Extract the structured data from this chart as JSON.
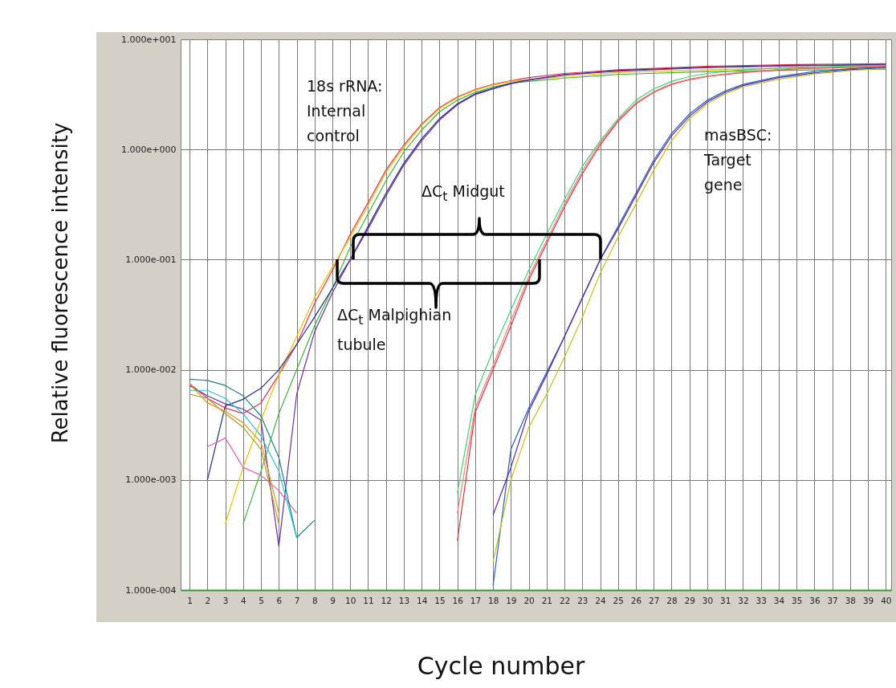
{
  "chart_data": {
    "type": "line",
    "xlabel": "Cycle number",
    "ylabel": "Relative fluorescence intensity",
    "xlim": [
      0.5,
      40.3
    ],
    "xticks": [
      1,
      2,
      3,
      4,
      5,
      6,
      7,
      8,
      9,
      10,
      11,
      12,
      13,
      14,
      15,
      16,
      17,
      18,
      19,
      20,
      21,
      22,
      23,
      24,
      25,
      26,
      27,
      28,
      29,
      30,
      31,
      32,
      33,
      34,
      35,
      36,
      37,
      38,
      39,
      40
    ],
    "ylim": [
      0.0001,
      10
    ],
    "yticks": [
      {
        "value": 0.0001,
        "label": "1.000e-004"
      },
      {
        "value": 0.001,
        "label": "1.000e-003"
      },
      {
        "value": 0.01,
        "label": "1.000e-002"
      },
      {
        "value": 0.1,
        "label": "1.000e-001"
      },
      {
        "value": 1,
        "label": "1.000e+000"
      },
      {
        "value": 10,
        "label": "1.000e+001"
      }
    ],
    "log": "y",
    "grid": true,
    "legend": false,
    "marker": "none",
    "line_style": "solid",
    "annotations": [
      "18s rRNA: Internal control",
      "ΔC$_{t}$ Midgut",
      "ΔC$_{t}$ Malpighian tubule",
      "masBSC: Target gene"
    ],
    "series": [
      {
        "color": "#e03050",
        "x": [
          1,
          2,
          3,
          4,
          5,
          6,
          7,
          8,
          9,
          10,
          11,
          12,
          13,
          14,
          15,
          16,
          17,
          18,
          19,
          20,
          22,
          25,
          30,
          35,
          40
        ],
        "values": [
          0.0075,
          0.0055,
          0.0045,
          0.004,
          0.005,
          0.009,
          0.017,
          0.04,
          0.08,
          0.17,
          0.33,
          0.65,
          1.1,
          1.7,
          2.4,
          3.0,
          3.5,
          3.9,
          4.2,
          4.5,
          4.9,
          5.3,
          5.7,
          5.9,
          6.0
        ]
      },
      {
        "color": "#e8c000",
        "x": [
          3,
          4,
          5,
          6,
          7,
          8,
          9,
          10,
          11,
          12,
          13,
          14,
          15,
          16,
          17,
          18,
          19,
          20,
          22,
          25,
          30,
          35,
          40
        ],
        "values": [
          0.0004,
          0.0013,
          0.0035,
          0.009,
          0.02,
          0.045,
          0.085,
          0.16,
          0.31,
          0.62,
          1.05,
          1.65,
          2.35,
          2.95,
          3.45,
          3.85,
          4.15,
          4.3,
          4.6,
          5.0,
          5.3,
          5.5,
          5.6
        ]
      },
      {
        "color": "#40b040",
        "x": [
          4,
          5,
          6,
          7,
          8,
          9,
          10,
          11,
          12,
          13,
          14,
          15,
          16,
          17,
          18,
          19,
          20,
          22,
          25,
          30,
          35,
          40
        ],
        "values": [
          0.0004,
          0.0012,
          0.004,
          0.01,
          0.025,
          0.055,
          0.13,
          0.26,
          0.52,
          0.95,
          1.5,
          2.2,
          2.8,
          3.3,
          3.7,
          4.0,
          4.15,
          4.45,
          4.8,
          5.1,
          5.25,
          5.35
        ]
      },
      {
        "color": "#203080",
        "x": [
          2,
          3,
          4,
          5,
          6,
          7,
          8,
          9,
          10,
          11,
          12,
          13,
          14,
          15,
          16,
          17,
          18,
          19,
          20,
          22,
          25,
          30,
          35,
          40
        ],
        "values": [
          0.001,
          0.0047,
          0.0054,
          0.0068,
          0.01,
          0.017,
          0.03,
          0.055,
          0.1,
          0.2,
          0.4,
          0.75,
          1.25,
          1.9,
          2.6,
          3.2,
          3.6,
          4.0,
          4.3,
          4.8,
          5.2,
          5.6,
          5.8,
          5.9
        ]
      },
      {
        "color": "#7030a0",
        "x": [
          1,
          2,
          3,
          4,
          5,
          6,
          7,
          8,
          9,
          10,
          11,
          12,
          13,
          14,
          15,
          16,
          17,
          18,
          19,
          20,
          22,
          25,
          30,
          35,
          40
        ],
        "values": [
          0.0072,
          0.0058,
          0.0049,
          0.0044,
          0.0035,
          0.00025,
          0.006,
          0.022,
          0.05,
          0.1,
          0.19,
          0.38,
          0.72,
          1.2,
          1.85,
          2.55,
          3.15,
          3.55,
          3.95,
          4.25,
          4.75,
          5.15,
          5.55,
          5.75,
          5.85
        ]
      },
      {
        "color": "#e060c0",
        "x": [
          2,
          3,
          4,
          5,
          6,
          7
        ],
        "values": [
          0.002,
          0.0024,
          0.0013,
          0.0011,
          0.0008,
          0.0005
        ]
      },
      {
        "color": "#208080",
        "x": [
          1,
          2,
          3,
          4,
          5,
          6,
          7,
          8
        ],
        "values": [
          0.0082,
          0.008,
          0.0072,
          0.0058,
          0.0038,
          0.0016,
          0.0003,
          0.00043
        ]
      },
      {
        "color": "#30c0d0",
        "x": [
          1,
          2,
          3,
          4,
          5,
          6,
          7
        ],
        "values": [
          0.0065,
          0.0065,
          0.0055,
          0.004,
          0.0025,
          0.0012,
          0.0003
        ]
      },
      {
        "color": "#a0a030",
        "x": [
          1,
          2,
          3,
          4,
          5,
          6
        ],
        "values": [
          0.006,
          0.0055,
          0.004,
          0.003,
          0.0019,
          0.0004
        ]
      },
      {
        "color": "#e09020",
        "x": [
          1,
          2,
          3,
          4,
          5,
          6
        ],
        "values": [
          0.0075,
          0.005,
          0.0042,
          0.0033,
          0.0022,
          0.0005
        ]
      },
      {
        "color": "#40d080",
        "x": [
          16,
          17,
          18,
          19,
          20,
          21,
          22,
          23,
          24,
          25,
          26,
          27,
          28,
          29,
          30,
          32,
          35,
          40
        ],
        "values": [
          0.00076,
          0.0059,
          0.015,
          0.035,
          0.08,
          0.17,
          0.35,
          0.7,
          1.2,
          1.9,
          2.8,
          3.55,
          4.15,
          4.6,
          4.9,
          5.3,
          5.6,
          5.8
        ]
      },
      {
        "color": "#e03040",
        "x": [
          16,
          17,
          18,
          19,
          20,
          21,
          22,
          23,
          24,
          25,
          26,
          27,
          28,
          29,
          30,
          32,
          35,
          40
        ],
        "values": [
          0.00028,
          0.0041,
          0.01,
          0.025,
          0.065,
          0.14,
          0.3,
          0.6,
          1.1,
          1.8,
          2.6,
          3.3,
          3.9,
          4.3,
          4.6,
          5.0,
          5.4,
          5.7
        ]
      },
      {
        "color": "#f08070",
        "x": [
          16,
          17,
          18,
          19,
          20,
          21,
          22,
          23,
          24,
          25,
          26,
          27,
          28,
          29,
          30,
          32,
          35,
          40
        ],
        "values": [
          0.0005,
          0.0045,
          0.011,
          0.028,
          0.07,
          0.15,
          0.32,
          0.64,
          1.15,
          1.85,
          2.65,
          3.35,
          3.95,
          4.35,
          4.65,
          5.05,
          5.45,
          5.75
        ]
      },
      {
        "color": "#2060c0",
        "x": [
          18,
          19,
          20,
          21,
          22,
          23,
          24,
          25,
          26,
          27,
          28,
          29,
          30,
          31,
          32,
          34,
          36,
          38,
          40
        ],
        "values": [
          0.00011,
          0.0019,
          0.0045,
          0.0095,
          0.02,
          0.045,
          0.1,
          0.2,
          0.4,
          0.8,
          1.4,
          2.1,
          2.8,
          3.4,
          3.9,
          4.6,
          5.1,
          5.4,
          5.6
        ]
      },
      {
        "color": "#6020a0",
        "x": [
          18,
          19,
          20,
          21,
          22,
          23,
          24,
          25,
          26,
          27,
          28,
          29,
          30,
          31,
          32,
          34,
          36,
          38,
          40
        ],
        "values": [
          0.00048,
          0.0013,
          0.0042,
          0.009,
          0.02,
          0.045,
          0.1,
          0.19,
          0.38,
          0.76,
          1.33,
          2.0,
          2.7,
          3.3,
          3.8,
          4.5,
          4.95,
          5.3,
          5.5
        ]
      },
      {
        "color": "#c0c020",
        "x": [
          18,
          19,
          20,
          21,
          22,
          23,
          24,
          25,
          26,
          27,
          28,
          29,
          30,
          31,
          32,
          34,
          36,
          38,
          40
        ],
        "values": [
          0.00018,
          0.001,
          0.003,
          0.006,
          0.013,
          0.03,
          0.075,
          0.16,
          0.32,
          0.65,
          1.2,
          1.9,
          2.6,
          3.2,
          3.7,
          4.35,
          4.85,
          5.2,
          5.45
        ]
      }
    ]
  }
}
